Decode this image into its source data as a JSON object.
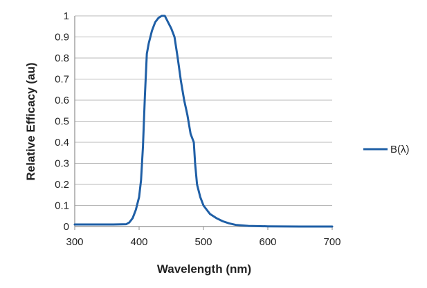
{
  "chart_data": {
    "type": "line",
    "title": "",
    "xlabel": "Wavelength (nm)",
    "ylabel": "Relative Efficacy (au)",
    "xlim": [
      300,
      700
    ],
    "ylim": [
      0,
      1
    ],
    "x_ticks": [
      "300",
      "400",
      "500",
      "600",
      "700"
    ],
    "y_ticks": [
      "0",
      "0.1",
      "0.2",
      "0.3",
      "0.4",
      "0.5",
      "0.6",
      "0.7",
      "0.8",
      "0.9",
      "1"
    ],
    "grid": "horizontal",
    "legend": "right",
    "series": [
      {
        "name": "B(λ)",
        "color": "#1f5fa6",
        "points": [
          [
            300,
            0.01
          ],
          [
            360,
            0.01
          ],
          [
            380,
            0.011
          ],
          [
            385,
            0.02
          ],
          [
            390,
            0.04
          ],
          [
            395,
            0.08
          ],
          [
            400,
            0.14
          ],
          [
            403,
            0.22
          ],
          [
            406,
            0.38
          ],
          [
            409,
            0.62
          ],
          [
            412,
            0.82
          ],
          [
            415,
            0.87
          ],
          [
            420,
            0.93
          ],
          [
            425,
            0.97
          ],
          [
            430,
            0.99
          ],
          [
            435,
            1.0
          ],
          [
            440,
            1.0
          ],
          [
            445,
            0.97
          ],
          [
            450,
            0.94
          ],
          [
            455,
            0.9
          ],
          [
            460,
            0.8
          ],
          [
            465,
            0.69
          ],
          [
            470,
            0.6
          ],
          [
            475,
            0.53
          ],
          [
            480,
            0.44
          ],
          [
            485,
            0.4
          ],
          [
            487,
            0.3
          ],
          [
            490,
            0.2
          ],
          [
            495,
            0.14
          ],
          [
            500,
            0.1
          ],
          [
            505,
            0.08
          ],
          [
            510,
            0.06
          ],
          [
            520,
            0.04
          ],
          [
            530,
            0.025
          ],
          [
            540,
            0.015
          ],
          [
            550,
            0.008
          ],
          [
            570,
            0.003
          ],
          [
            600,
            0.001
          ],
          [
            650,
            0.0
          ],
          [
            700,
            0.0
          ]
        ]
      }
    ]
  }
}
